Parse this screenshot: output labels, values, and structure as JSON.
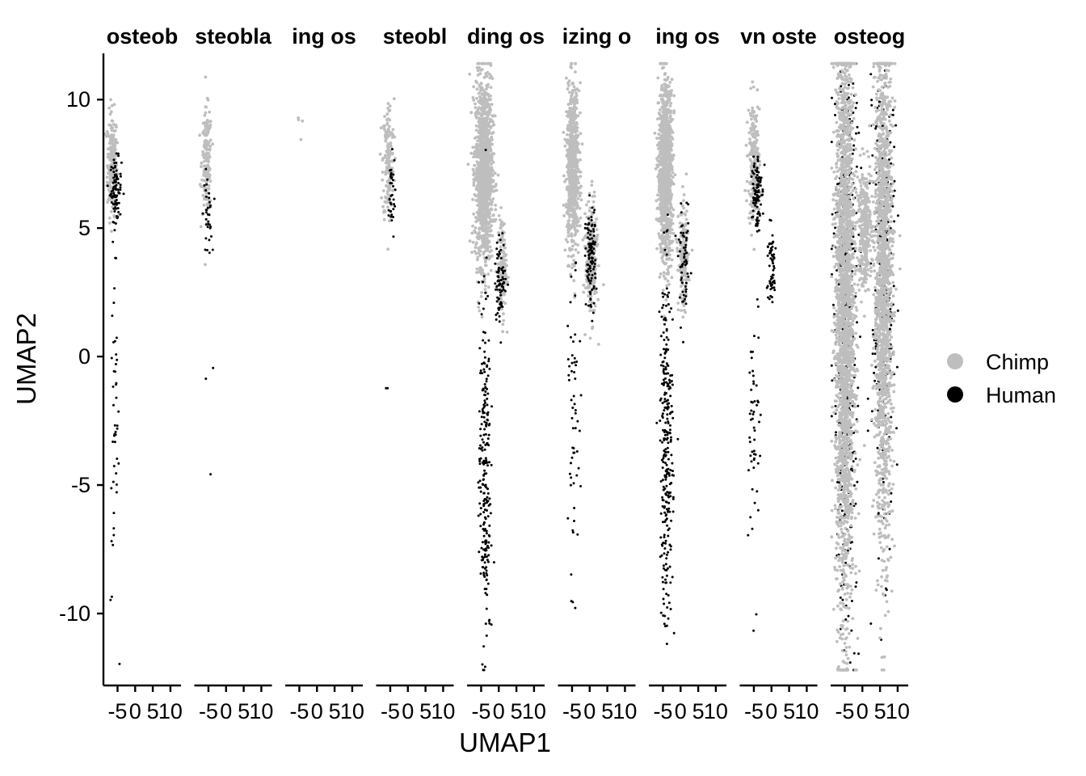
{
  "chart_data": {
    "type": "scatter",
    "xlabel": "UMAP1",
    "ylabel": "UMAP2",
    "ylim": [
      -12.8,
      11.8
    ],
    "xlim": [
      -9,
      13
    ],
    "y_ticks": [
      10,
      5,
      0,
      -5,
      -10
    ],
    "x_ticks": [
      -5,
      0,
      5,
      10
    ],
    "x_tick_labels": [
      "-5",
      "0",
      "5",
      "10"
    ],
    "legend": {
      "placement": "right",
      "entries": [
        {
          "name": "Chimp",
          "color": "#bebebe"
        },
        {
          "name": "Human",
          "color": "#000000"
        }
      ]
    },
    "facets": [
      {
        "title": "osteob",
        "clusters": [
          {
            "series": "Chimp",
            "cx": -6.5,
            "cy": 7.5,
            "sx": 0.7,
            "sy": 1.0,
            "n": 220
          },
          {
            "series": "Human",
            "cx": -5.5,
            "cy": 6.5,
            "sx": 0.8,
            "sy": 0.6,
            "n": 90
          },
          {
            "series": "Human",
            "cx": -5.8,
            "cy": -3.0,
            "sx": 0.6,
            "sy": 3.5,
            "n": 45
          }
        ]
      },
      {
        "title": "steobla",
        "clusters": [
          {
            "series": "Chimp",
            "cx": -5.5,
            "cy": 7.6,
            "sx": 0.7,
            "sy": 1.0,
            "n": 170
          },
          {
            "series": "Human",
            "cx": -5.2,
            "cy": 5.5,
            "sx": 0.6,
            "sy": 0.8,
            "n": 35
          },
          {
            "series": "Human",
            "cx": -5.0,
            "cy": -1.0,
            "sx": 1.0,
            "sy": 1.6,
            "n": 3
          }
        ]
      },
      {
        "title": "ing os",
        "clusters": [
          {
            "series": "Chimp",
            "cx": -5.3,
            "cy": 8.9,
            "sx": 0.5,
            "sy": 0.6,
            "n": 4
          }
        ]
      },
      {
        "title": "steobl",
        "clusters": [
          {
            "series": "Chimp",
            "cx": -5.5,
            "cy": 7.6,
            "sx": 0.8,
            "sy": 1.2,
            "n": 160
          },
          {
            "series": "Human",
            "cx": -4.8,
            "cy": 6.2,
            "sx": 0.6,
            "sy": 0.8,
            "n": 35
          },
          {
            "series": "Human",
            "cx": -6.0,
            "cy": -1.1,
            "sx": 0.2,
            "sy": 0.3,
            "n": 2
          }
        ]
      },
      {
        "title": "ding os",
        "clusters": [
          {
            "series": "Chimp",
            "cx": -4.2,
            "cy": 7.2,
            "sx": 1.2,
            "sy": 1.8,
            "n": 1300
          },
          {
            "series": "Chimp",
            "cx": 1.0,
            "cy": 3.5,
            "sx": 0.6,
            "sy": 1.0,
            "n": 120
          },
          {
            "series": "Human",
            "cx": -4.0,
            "cy": -4.5,
            "sx": 0.8,
            "sy": 3.5,
            "n": 230
          },
          {
            "series": "Human",
            "cx": 0.5,
            "cy": 3.0,
            "sx": 0.8,
            "sy": 0.8,
            "n": 80
          }
        ]
      },
      {
        "title": "izing o",
        "clusters": [
          {
            "series": "Chimp",
            "cx": -4.8,
            "cy": 7.3,
            "sx": 0.9,
            "sy": 1.6,
            "n": 700
          },
          {
            "series": "Chimp",
            "cx": 0.5,
            "cy": 3.8,
            "sx": 0.8,
            "sy": 1.1,
            "n": 250
          },
          {
            "series": "Human",
            "cx": 0.3,
            "cy": 3.8,
            "sx": 0.7,
            "sy": 1.0,
            "n": 110
          },
          {
            "series": "Human",
            "cx": -4.5,
            "cy": -3.0,
            "sx": 0.8,
            "sy": 3.0,
            "n": 60
          }
        ]
      },
      {
        "title": "ing os",
        "clusters": [
          {
            "series": "Chimp",
            "cx": -4.3,
            "cy": 7.2,
            "sx": 1.0,
            "sy": 1.7,
            "n": 1100
          },
          {
            "series": "Chimp",
            "cx": 0.8,
            "cy": 3.8,
            "sx": 0.7,
            "sy": 1.0,
            "n": 160
          },
          {
            "series": "Human",
            "cx": -4.0,
            "cy": -3.5,
            "sx": 0.9,
            "sy": 3.5,
            "n": 280
          },
          {
            "series": "Human",
            "cx": 1.0,
            "cy": 3.5,
            "sx": 0.8,
            "sy": 1.0,
            "n": 60
          }
        ]
      },
      {
        "title": "vn oste",
        "clusters": [
          {
            "series": "Chimp",
            "cx": -5.0,
            "cy": 7.6,
            "sx": 0.8,
            "sy": 1.2,
            "n": 200
          },
          {
            "series": "Human",
            "cx": -4.3,
            "cy": 6.5,
            "sx": 0.7,
            "sy": 0.8,
            "n": 100
          },
          {
            "series": "Human",
            "cx": 0.0,
            "cy": 3.5,
            "sx": 0.7,
            "sy": 0.8,
            "n": 60
          },
          {
            "series": "Human",
            "cx": -4.8,
            "cy": -3.0,
            "sx": 0.8,
            "sy": 2.8,
            "n": 55
          }
        ]
      },
      {
        "title": "osteog",
        "clusters": [
          {
            "series": "Human",
            "cx": -4.8,
            "cy": 2.0,
            "sx": 1.6,
            "sy": 6.0,
            "n": 500
          },
          {
            "series": "Chimp",
            "cx": -5.0,
            "cy": 2.0,
            "sx": 1.3,
            "sy": 6.0,
            "n": 2400
          },
          {
            "series": "Human",
            "cx": 6.0,
            "cy": 3.0,
            "sx": 1.6,
            "sy": 5.0,
            "n": 300
          },
          {
            "series": "Chimp",
            "cx": 6.0,
            "cy": 3.0,
            "sx": 1.3,
            "sy": 5.0,
            "n": 1600
          },
          {
            "series": "Chimp",
            "cx": 0.5,
            "cy": 5.0,
            "sx": 1.0,
            "sy": 1.2,
            "n": 300
          }
        ]
      }
    ]
  }
}
